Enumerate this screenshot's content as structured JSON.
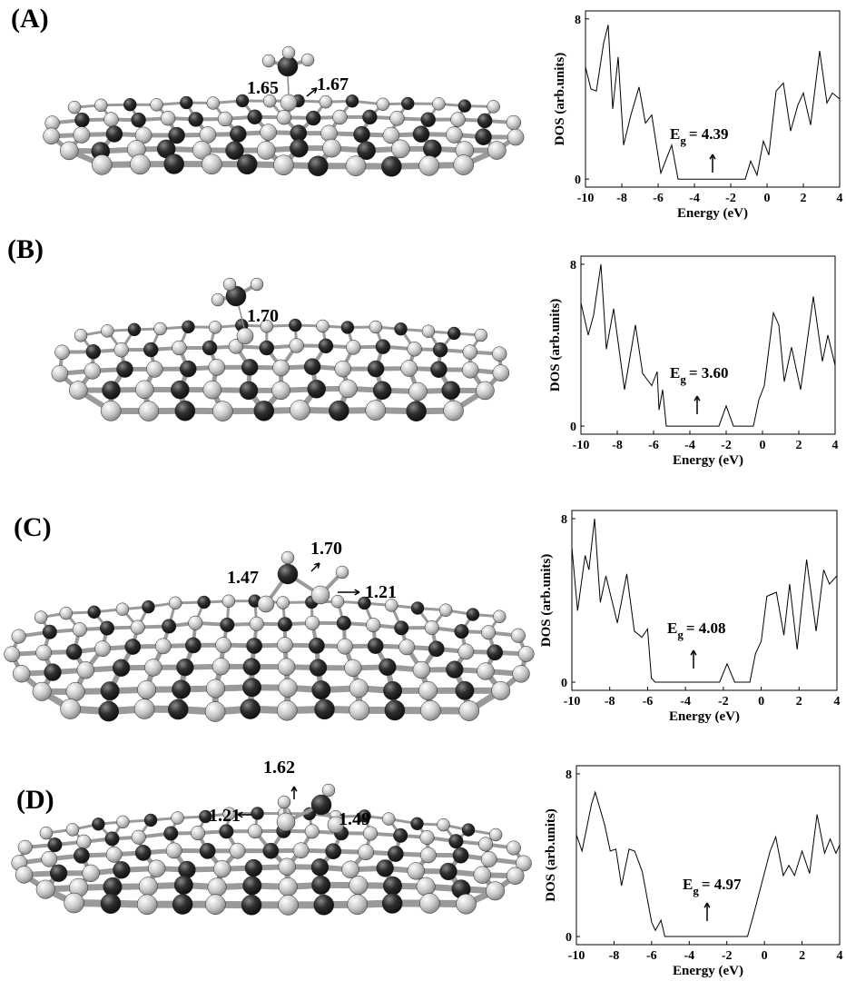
{
  "panels": [
    {
      "label": "(A)",
      "bonds": [
        "1.65",
        "1.67"
      ]
    },
    {
      "label": "(B)",
      "bonds": [
        "1.70"
      ]
    },
    {
      "label": "(C)",
      "bonds": [
        "1.47",
        "1.70",
        "1.21"
      ]
    },
    {
      "label": "(D)",
      "bonds": [
        "1.62",
        "1.21",
        "1.49"
      ]
    }
  ],
  "chart_data": [
    {
      "type": "line",
      "xlabel": "Energy (eV)",
      "ylabel": "DOS (arb.units)",
      "color": "#000000",
      "gap_symbol": "E",
      "gap_subscript": "g",
      "gap_text": "= 4.39",
      "xlim": [
        -10,
        4
      ],
      "ylim": [
        -0.4,
        8.4
      ],
      "xticks": [
        -10,
        -8,
        -6,
        -4,
        -2,
        0,
        2,
        4
      ],
      "yticks": [
        0,
        8
      ],
      "x": [
        -10,
        -9.7,
        -9.4,
        -9.0,
        -8.75,
        -8.5,
        -8.2,
        -7.9,
        -7.5,
        -7.05,
        -6.7,
        -6.35,
        -5.85,
        -5.25,
        -4.9,
        -1.2,
        -0.9,
        -0.55,
        -0.2,
        0.1,
        0.5,
        0.9,
        1.3,
        1.7,
        2.0,
        2.4,
        2.9,
        3.3,
        3.6,
        4.0
      ],
      "values": [
        5.6,
        4.5,
        4.4,
        6.8,
        7.7,
        3.5,
        6.1,
        1.7,
        3.2,
        4.6,
        2.8,
        3.2,
        0.3,
        1.7,
        0,
        0,
        0.9,
        0.2,
        1.9,
        1.2,
        4.4,
        4.8,
        2.4,
        3.7,
        4.3,
        2.7,
        6.4,
        3.8,
        4.3,
        4.0
      ]
    },
    {
      "type": "line",
      "xlabel": "Energy (eV)",
      "ylabel": "DOS (arb.units)",
      "color": "#000000",
      "gap_symbol": "E",
      "gap_subscript": "g",
      "gap_text": "= 3.60",
      "xlim": [
        -10,
        4
      ],
      "ylim": [
        -0.4,
        8.4
      ],
      "xticks": [
        -10,
        -8,
        -6,
        -4,
        -2,
        0,
        2,
        4
      ],
      "yticks": [
        0,
        8
      ],
      "x": [
        -10,
        -9.6,
        -9.3,
        -8.9,
        -8.6,
        -8.2,
        -7.6,
        -7.0,
        -6.6,
        -6.1,
        -5.8,
        -5.7,
        -5.5,
        -5.3,
        -2.4,
        -2.0,
        -1.6,
        -0.5,
        -0.2,
        0.1,
        0.6,
        0.9,
        1.2,
        1.6,
        2.1,
        2.8,
        3.3,
        3.6,
        4.0
      ],
      "values": [
        6.1,
        4.5,
        5.5,
        8.0,
        3.8,
        5.8,
        1.8,
        5.0,
        2.6,
        2.0,
        2.7,
        0.8,
        1.8,
        0,
        0,
        1.0,
        0,
        0,
        1.3,
        2.0,
        5.6,
        5.0,
        2.2,
        3.9,
        1.8,
        6.4,
        3.2,
        4.5,
        3.0
      ]
    },
    {
      "type": "line",
      "xlabel": "Energy (eV)",
      "ylabel": "DOS (arb.units)",
      "color": "#000000",
      "gap_symbol": "E",
      "gap_subscript": "g",
      "gap_text": "= 4.08",
      "xlim": [
        -10,
        4
      ],
      "ylim": [
        -0.4,
        8.4
      ],
      "xticks": [
        -10,
        -8,
        -6,
        -4,
        -2,
        0,
        2,
        4
      ],
      "yticks": [
        0,
        8
      ],
      "x": [
        -10,
        -9.7,
        -9.3,
        -9.1,
        -8.8,
        -8.5,
        -8.2,
        -7.6,
        -7.1,
        -6.7,
        -6.3,
        -6.0,
        -5.8,
        -5.6,
        -2.2,
        -1.8,
        -1.4,
        -0.6,
        -0.3,
        0,
        0.3,
        0.8,
        1.2,
        1.5,
        1.9,
        2.4,
        2.9,
        3.3,
        3.6,
        4.0
      ],
      "values": [
        6.6,
        3.5,
        6.2,
        5.5,
        8.0,
        3.9,
        5.2,
        2.9,
        5.3,
        2.5,
        2.2,
        2.6,
        0.2,
        0,
        0,
        0.9,
        0,
        0,
        1.4,
        2.0,
        4.2,
        4.4,
        2.3,
        4.8,
        1.6,
        6.0,
        2.5,
        5.5,
        4.8,
        5.2
      ]
    },
    {
      "type": "line",
      "xlabel": "Energy (eV)",
      "ylabel": "DOS (arb.units)",
      "color": "#000000",
      "gap_symbol": "E",
      "gap_subscript": "g",
      "gap_text": "= 4.97",
      "xlim": [
        -10,
        4
      ],
      "ylim": [
        -0.4,
        8.4
      ],
      "xticks": [
        -10,
        -8,
        -6,
        -4,
        -2,
        0,
        2,
        4
      ],
      "yticks": [
        0,
        8
      ],
      "x": [
        -10,
        -9.7,
        -9.2,
        -9.0,
        -8.5,
        -8.2,
        -7.9,
        -7.6,
        -7.2,
        -6.9,
        -6.5,
        -6.0,
        -5.8,
        -5.5,
        -5.3,
        -0.9,
        -0.6,
        0.3,
        0.6,
        1.0,
        1.3,
        1.6,
        2.0,
        2.4,
        2.8,
        3.2,
        3.5,
        3.8,
        4.0
      ],
      "values": [
        5.0,
        4.2,
        6.5,
        7.1,
        5.5,
        4.2,
        4.3,
        2.5,
        4.3,
        4.2,
        3.2,
        0.7,
        0.3,
        0.8,
        0,
        0,
        1.0,
        4.2,
        4.9,
        3.0,
        3.5,
        3.0,
        4.2,
        3.1,
        6.0,
        4.1,
        4.8,
        4.1,
        4.5
      ]
    }
  ]
}
